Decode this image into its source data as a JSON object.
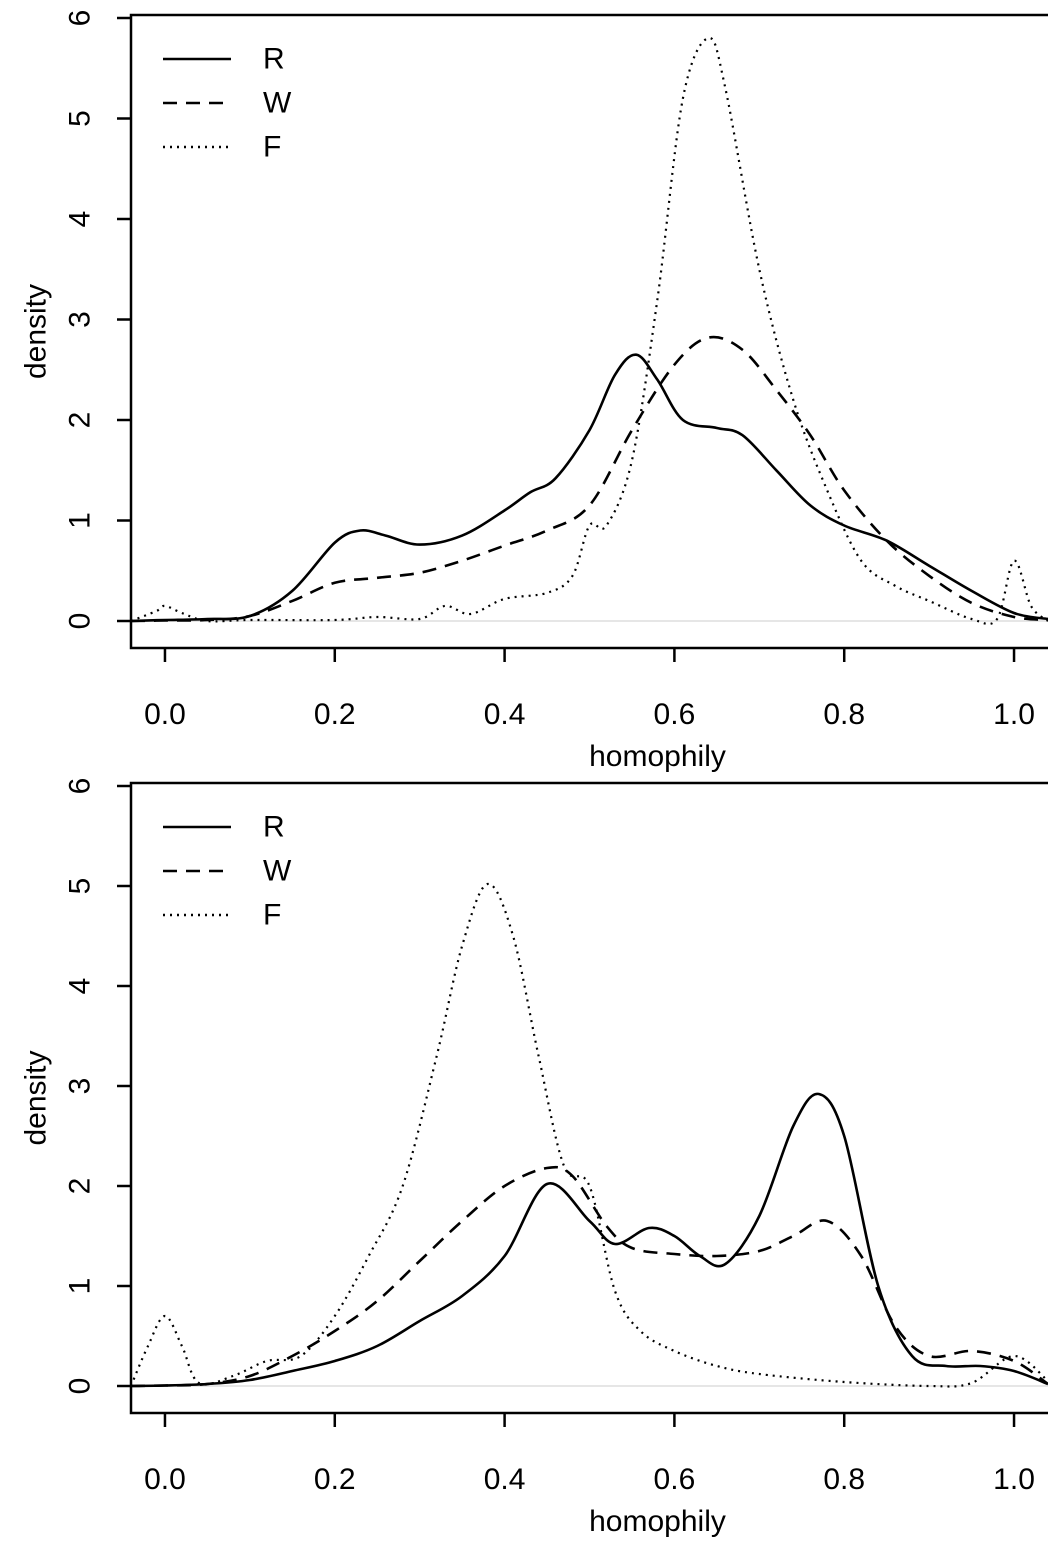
{
  "chart_data": [
    {
      "type": "line",
      "title": "",
      "xlabel": "homophily",
      "ylabel": "density",
      "xlim": [
        -0.04,
        1.04
      ],
      "ylim": [
        0,
        6
      ],
      "xticks": [
        "0.0",
        "0.2",
        "0.4",
        "0.6",
        "0.8",
        "1.0"
      ],
      "yticks": [
        "0",
        "1",
        "2",
        "3",
        "4",
        "5",
        "6"
      ],
      "legend": "top-left",
      "series": [
        {
          "name": "R",
          "style": "solid",
          "x": [
            -0.04,
            0.0,
            0.05,
            0.1,
            0.15,
            0.2,
            0.23,
            0.26,
            0.3,
            0.35,
            0.4,
            0.43,
            0.46,
            0.5,
            0.53,
            0.555,
            0.58,
            0.61,
            0.65,
            0.68,
            0.72,
            0.76,
            0.8,
            0.85,
            0.9,
            0.95,
            1.0,
            1.04
          ],
          "y": [
            0,
            0.01,
            0.02,
            0.05,
            0.3,
            0.78,
            0.9,
            0.85,
            0.76,
            0.85,
            1.1,
            1.28,
            1.42,
            1.9,
            2.45,
            2.65,
            2.4,
            2.0,
            1.92,
            1.85,
            1.5,
            1.15,
            0.95,
            0.8,
            0.55,
            0.3,
            0.08,
            0.02
          ]
        },
        {
          "name": "W",
          "style": "dashed",
          "x": [
            -0.04,
            0.0,
            0.05,
            0.1,
            0.15,
            0.2,
            0.25,
            0.3,
            0.35,
            0.4,
            0.45,
            0.5,
            0.55,
            0.6,
            0.64,
            0.68,
            0.72,
            0.76,
            0.8,
            0.85,
            0.9,
            0.95,
            1.0,
            1.04
          ],
          "y": [
            0,
            0.005,
            0.01,
            0.05,
            0.2,
            0.38,
            0.43,
            0.48,
            0.6,
            0.75,
            0.9,
            1.15,
            1.9,
            2.55,
            2.82,
            2.7,
            2.3,
            1.85,
            1.3,
            0.8,
            0.45,
            0.18,
            0.04,
            0.01
          ]
        },
        {
          "name": "F",
          "style": "dotted",
          "x": [
            -0.04,
            -0.01,
            0.0,
            0.02,
            0.05,
            0.1,
            0.2,
            0.25,
            0.3,
            0.33,
            0.36,
            0.4,
            0.45,
            0.48,
            0.5,
            0.52,
            0.55,
            0.58,
            0.61,
            0.64,
            0.66,
            0.7,
            0.74,
            0.78,
            0.82,
            0.86,
            0.9,
            0.95,
            0.98,
            1.0,
            1.02,
            1.04
          ],
          "y": [
            0,
            0.1,
            0.15,
            0.08,
            0.0,
            0.01,
            0.01,
            0.04,
            0.02,
            0.15,
            0.07,
            0.22,
            0.28,
            0.45,
            0.95,
            0.95,
            1.6,
            3.2,
            5.2,
            5.8,
            5.3,
            3.5,
            2.2,
            1.3,
            0.6,
            0.35,
            0.2,
            0.02,
            0.02,
            0.6,
            0.15,
            0.0
          ]
        }
      ]
    },
    {
      "type": "line",
      "title": "",
      "xlabel": "homophily",
      "ylabel": "density",
      "xlim": [
        -0.04,
        1.04
      ],
      "ylim": [
        0,
        6
      ],
      "xticks": [
        "0.0",
        "0.2",
        "0.4",
        "0.6",
        "0.8",
        "1.0"
      ],
      "yticks": [
        "0",
        "1",
        "2",
        "3",
        "4",
        "5",
        "6"
      ],
      "legend": "top-left",
      "series": [
        {
          "name": "R",
          "style": "solid",
          "x": [
            -0.04,
            0.0,
            0.05,
            0.1,
            0.15,
            0.2,
            0.25,
            0.3,
            0.35,
            0.4,
            0.45,
            0.5,
            0.53,
            0.57,
            0.6,
            0.63,
            0.66,
            0.7,
            0.74,
            0.77,
            0.8,
            0.84,
            0.88,
            0.92,
            0.96,
            1.0,
            1.04
          ],
          "y": [
            0,
            0.005,
            0.02,
            0.06,
            0.15,
            0.25,
            0.4,
            0.65,
            0.9,
            1.3,
            2.02,
            1.65,
            1.42,
            1.58,
            1.5,
            1.3,
            1.22,
            1.7,
            2.6,
            2.92,
            2.5,
            1.0,
            0.3,
            0.2,
            0.2,
            0.15,
            0.02
          ]
        },
        {
          "name": "W",
          "style": "dashed",
          "x": [
            -0.04,
            0.0,
            0.05,
            0.1,
            0.15,
            0.2,
            0.25,
            0.3,
            0.35,
            0.4,
            0.45,
            0.48,
            0.52,
            0.55,
            0.6,
            0.65,
            0.7,
            0.74,
            0.78,
            0.82,
            0.86,
            0.9,
            0.95,
            1.0,
            1.04
          ],
          "y": [
            0,
            0.005,
            0.02,
            0.1,
            0.3,
            0.55,
            0.85,
            1.25,
            1.65,
            2.0,
            2.18,
            2.1,
            1.6,
            1.38,
            1.32,
            1.3,
            1.35,
            1.5,
            1.65,
            1.3,
            0.6,
            0.3,
            0.35,
            0.25,
            0.02
          ]
        },
        {
          "name": "F",
          "style": "dotted",
          "x": [
            -0.04,
            -0.02,
            0.0,
            0.02,
            0.04,
            0.08,
            0.12,
            0.16,
            0.2,
            0.24,
            0.28,
            0.32,
            0.35,
            0.38,
            0.41,
            0.44,
            0.47,
            0.5,
            0.53,
            0.56,
            0.6,
            0.65,
            0.7,
            0.8,
            0.9,
            0.95,
            1.0,
            1.04
          ],
          "y": [
            0,
            0.4,
            0.7,
            0.4,
            0.03,
            0.1,
            0.25,
            0.3,
            0.7,
            1.3,
            2.0,
            3.3,
            4.4,
            5.02,
            4.5,
            3.3,
            2.2,
            2.0,
            0.95,
            0.55,
            0.35,
            0.2,
            0.12,
            0.04,
            0.0,
            0.03,
            0.3,
            0.05
          ]
        }
      ]
    }
  ]
}
